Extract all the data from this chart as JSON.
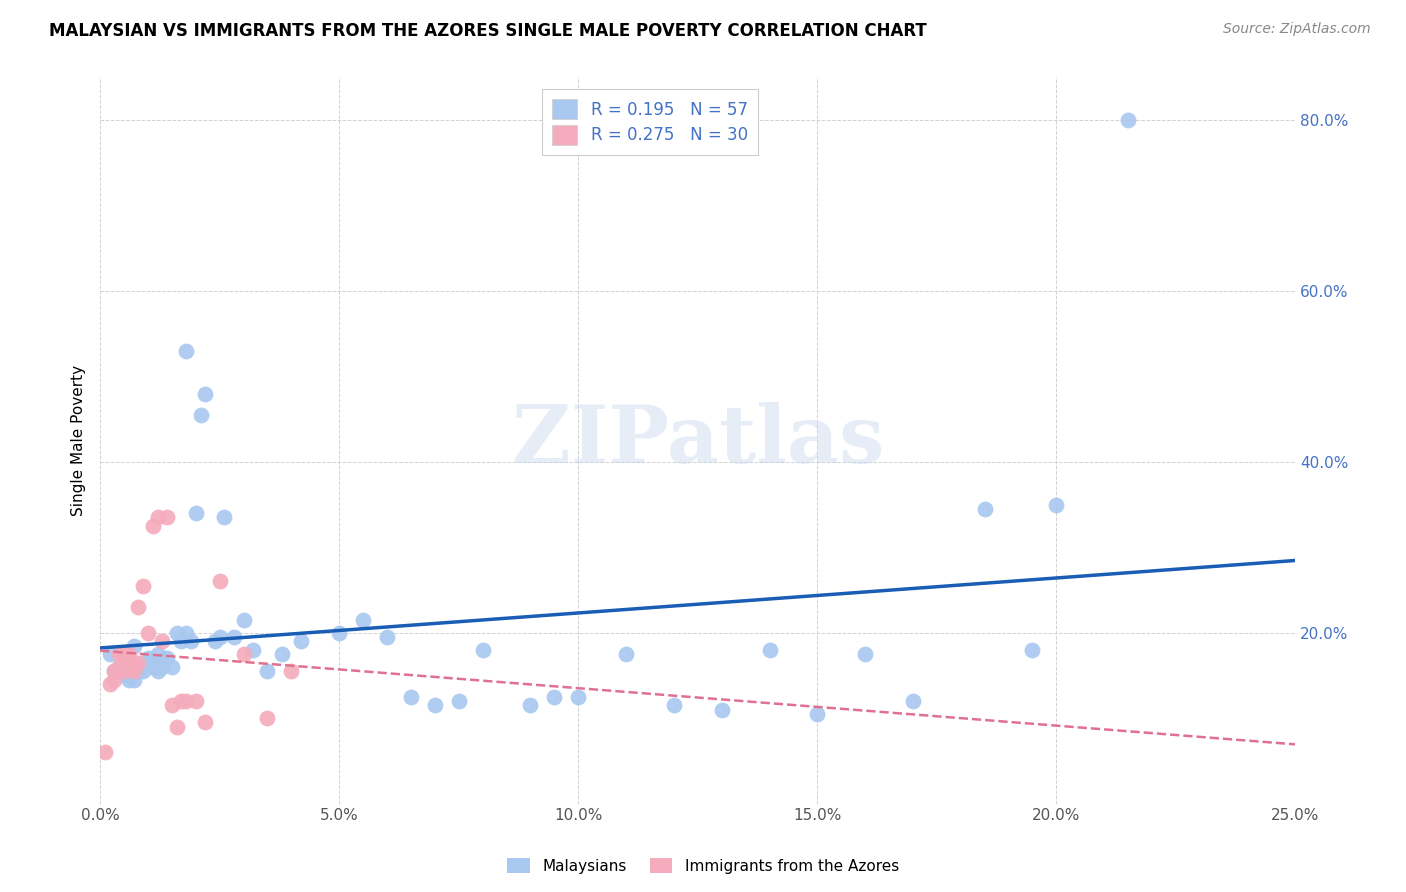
{
  "title": "MALAYSIAN VS IMMIGRANTS FROM THE AZORES SINGLE MALE POVERTY CORRELATION CHART",
  "source": "Source: ZipAtlas.com",
  "ylabel": "Single Male Poverty",
  "xlim": [
    0.0,
    0.25
  ],
  "ylim": [
    0.0,
    0.85
  ],
  "xticks": [
    0.0,
    0.05,
    0.1,
    0.15,
    0.2,
    0.25
  ],
  "ytick_vals": [
    0.0,
    0.2,
    0.4,
    0.6,
    0.8
  ],
  "blue_color": "#A8C8F0",
  "pink_color": "#F4ABBB",
  "line_blue": "#1A5DB5",
  "line_pink": "#E07090",
  "legend_blue_R": "0.195",
  "legend_blue_N": "57",
  "legend_pink_R": "0.275",
  "legend_pink_N": "30",
  "label_malaysians": "Malaysians",
  "label_azores": "Immigrants from the Azores",
  "watermark": "ZIPatlas",
  "blue_x": [
    0.002,
    0.003,
    0.004,
    0.005,
    0.005,
    0.006,
    0.007,
    0.007,
    0.008,
    0.009,
    0.01,
    0.01,
    0.011,
    0.012,
    0.012,
    0.013,
    0.013,
    0.014,
    0.015,
    0.016,
    0.017,
    0.018,
    0.018,
    0.019,
    0.02,
    0.021,
    0.022,
    0.024,
    0.025,
    0.026,
    0.028,
    0.03,
    0.032,
    0.035,
    0.038,
    0.042,
    0.05,
    0.055,
    0.06,
    0.065,
    0.07,
    0.075,
    0.08,
    0.09,
    0.095,
    0.1,
    0.11,
    0.12,
    0.13,
    0.14,
    0.15,
    0.16,
    0.17,
    0.185,
    0.195,
    0.2,
    0.215
  ],
  "blue_y": [
    0.175,
    0.155,
    0.16,
    0.15,
    0.17,
    0.145,
    0.145,
    0.185,
    0.155,
    0.155,
    0.165,
    0.17,
    0.16,
    0.155,
    0.175,
    0.16,
    0.165,
    0.17,
    0.16,
    0.2,
    0.19,
    0.2,
    0.53,
    0.19,
    0.34,
    0.455,
    0.48,
    0.19,
    0.195,
    0.335,
    0.195,
    0.215,
    0.18,
    0.155,
    0.175,
    0.19,
    0.2,
    0.215,
    0.195,
    0.125,
    0.115,
    0.12,
    0.18,
    0.115,
    0.125,
    0.125,
    0.175,
    0.115,
    0.11,
    0.18,
    0.105,
    0.175,
    0.12,
    0.345,
    0.18,
    0.35,
    0.8
  ],
  "pink_x": [
    0.001,
    0.002,
    0.003,
    0.003,
    0.004,
    0.004,
    0.005,
    0.005,
    0.006,
    0.006,
    0.007,
    0.007,
    0.008,
    0.008,
    0.009,
    0.01,
    0.011,
    0.012,
    0.013,
    0.014,
    0.015,
    0.016,
    0.017,
    0.018,
    0.02,
    0.022,
    0.025,
    0.03,
    0.035,
    0.04
  ],
  "pink_y": [
    0.06,
    0.14,
    0.145,
    0.155,
    0.16,
    0.175,
    0.155,
    0.175,
    0.16,
    0.175,
    0.155,
    0.165,
    0.165,
    0.23,
    0.255,
    0.2,
    0.325,
    0.335,
    0.19,
    0.335,
    0.115,
    0.09,
    0.12,
    0.12,
    0.12,
    0.095,
    0.26,
    0.175,
    0.1,
    0.155
  ]
}
